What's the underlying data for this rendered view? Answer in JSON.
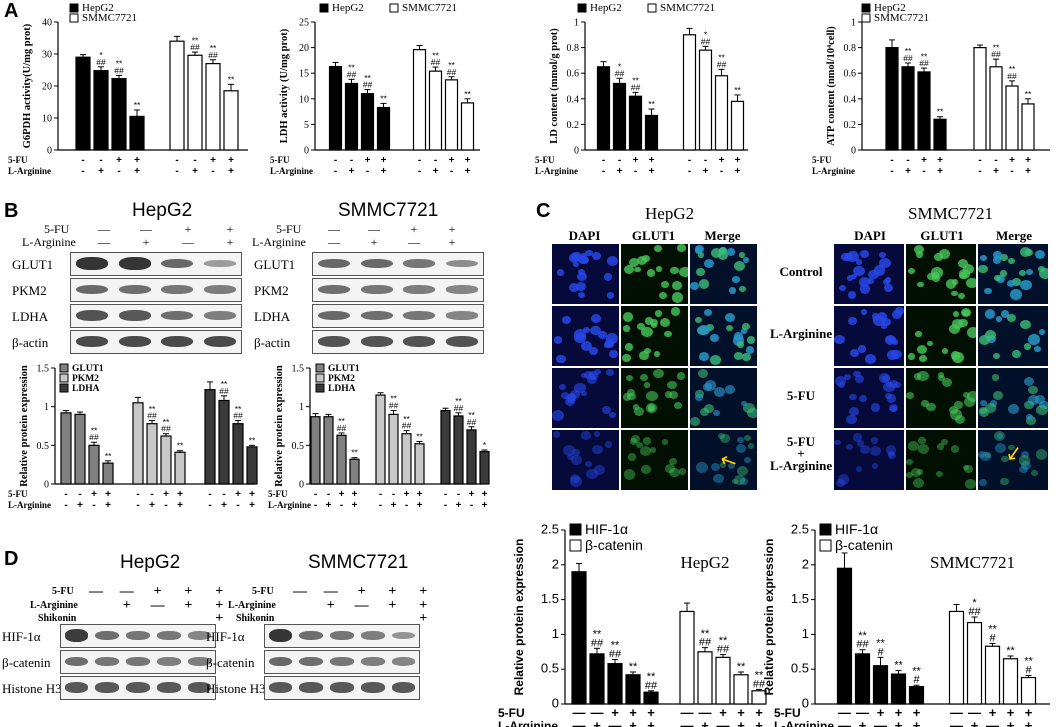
{
  "panels": {
    "A": "A",
    "B": "B",
    "C": "C",
    "D": "D"
  },
  "treatments": {
    "fu": "5-FU",
    "larg": "L-Arginine",
    "shik": "Shikonin"
  },
  "cells": {
    "hepg2": "HepG2",
    "smmc": "SMMC7721"
  },
  "proteins": {
    "glut1": "GLUT1",
    "pkm2": "PKM2",
    "ldha": "LDHA",
    "bactin": "β-actin",
    "hif": "HIF-1α",
    "bcat": "β-catenin",
    "histone": "Histone H3"
  },
  "signs": {
    "minus": "—",
    "plus": "+",
    "dash": "-"
  },
  "colors": {
    "black": "#000000",
    "white": "#ffffff",
    "grey1": "#808080",
    "grey2": "#c8c8c8",
    "grey3": "#3a3a3a"
  },
  "panelC": {
    "dapi": "DAPI",
    "glut1": "GLUT1",
    "merge": "Merge",
    "rows": [
      "Control",
      "L-Arginine",
      "5-FU",
      "5-FU\n+\nL-Arginine"
    ]
  },
  "chart_data": [
    {
      "type": "bar",
      "id": "A1",
      "ylabel": "G6PDH activity(U/mg prot)",
      "ylim": [
        0,
        40
      ],
      "yticks": [
        0,
        10,
        20,
        30,
        40
      ],
      "legend": [
        "HepG2",
        "SMMC7721"
      ],
      "groups": 2,
      "series": [
        {
          "name": "HepG2",
          "values": [
            29,
            24.8,
            22.3,
            10.5
          ],
          "errors": [
            0.8,
            1.2,
            1.0,
            2.0
          ],
          "ann": [
            "",
            "*\n##",
            "**\n##",
            "**"
          ]
        },
        {
          "name": "SMMC7721",
          "values": [
            34,
            29.6,
            27,
            18.5
          ],
          "errors": [
            1.5,
            1.0,
            1.2,
            2.0
          ],
          "ann": [
            "",
            "**\n##",
            "**\n##",
            "**"
          ]
        }
      ],
      "signs_fu": [
        "-",
        "-",
        "+",
        "+"
      ],
      "signs_larg": [
        "-",
        "+",
        "-",
        "+"
      ]
    },
    {
      "type": "bar",
      "id": "A2",
      "ylabel": "LDH activity (U/mg prot)",
      "ylim": [
        0,
        25
      ],
      "yticks": [
        0,
        5,
        10,
        15,
        20,
        25
      ],
      "legend": [
        "HepG2",
        "SMMC7721"
      ],
      "groups": 2,
      "series": [
        {
          "name": "HepG2",
          "values": [
            16.3,
            13,
            11,
            8.3
          ],
          "errors": [
            0.8,
            0.8,
            0.8,
            0.8
          ],
          "ann": [
            "",
            "**\n##",
            "**\n##",
            "**"
          ]
        },
        {
          "name": "SMMC7721",
          "values": [
            19.6,
            15.4,
            13.7,
            9.2
          ],
          "errors": [
            0.8,
            0.8,
            0.6,
            0.8
          ],
          "ann": [
            "",
            "**\n##",
            "**\n##",
            "**"
          ]
        }
      ],
      "signs_fu": [
        "-",
        "-",
        "+",
        "+"
      ],
      "signs_larg": [
        "-",
        "+",
        "-",
        "+"
      ]
    },
    {
      "type": "bar",
      "id": "A3",
      "ylabel": "LD content (mmol/g prot)",
      "ylim": [
        0,
        1.0
      ],
      "yticks": [
        0,
        0.2,
        0.4,
        0.6,
        0.8,
        1.0
      ],
      "legend": [
        "HepG2",
        "SMMC7721"
      ],
      "groups": 2,
      "series": [
        {
          "name": "HepG2",
          "values": [
            0.65,
            0.52,
            0.42,
            0.27
          ],
          "errors": [
            0.04,
            0.04,
            0.03,
            0.05
          ],
          "ann": [
            "",
            "*\n##",
            "**\n##",
            "**"
          ]
        },
        {
          "name": "SMMC7721",
          "values": [
            0.9,
            0.78,
            0.58,
            0.38
          ],
          "errors": [
            0.05,
            0.03,
            0.05,
            0.05
          ],
          "ann": [
            "",
            "*\n##",
            "**\n##",
            "**"
          ]
        }
      ],
      "signs_fu": [
        "-",
        "-",
        "+",
        "+"
      ],
      "signs_larg": [
        "-",
        "+",
        "-",
        "+"
      ]
    },
    {
      "type": "bar",
      "id": "A4",
      "ylabel": "ATP content (nmol/10⁴cell)",
      "ylim": [
        0,
        1.0
      ],
      "yticks": [
        0,
        0.2,
        0.4,
        0.6,
        0.8,
        1.0
      ],
      "legend": [
        "HepG2",
        "SMMC7721"
      ],
      "groups": 2,
      "series": [
        {
          "name": "HepG2",
          "values": [
            0.8,
            0.65,
            0.61,
            0.24
          ],
          "errors": [
            0.06,
            0.03,
            0.03,
            0.02
          ],
          "ann": [
            "",
            "**\n##",
            "**\n##",
            "**"
          ]
        },
        {
          "name": "SMMC7721",
          "values": [
            0.8,
            0.65,
            0.5,
            0.36
          ],
          "errors": [
            0.02,
            0.06,
            0.04,
            0.04
          ],
          "ann": [
            "",
            "**\n##",
            "**\n##",
            "**"
          ]
        }
      ],
      "signs_fu": [
        "-",
        "-",
        "+",
        "+"
      ],
      "signs_larg": [
        "-",
        "+",
        "-",
        "+"
      ]
    },
    {
      "type": "bar",
      "id": "B1",
      "ylabel": "Relative protein expression",
      "ylim": [
        0,
        1.5
      ],
      "yticks": [
        0,
        0.5,
        1.0,
        1.5
      ],
      "legend": [
        "GLUT1",
        "PKM2",
        "LDHA"
      ],
      "groups": 3,
      "series": [
        {
          "name": "GLUT1",
          "values": [
            0.92,
            0.9,
            0.5,
            0.27
          ],
          "errors": [
            0.03,
            0.03,
            0.04,
            0.03
          ],
          "ann": [
            "",
            "",
            "**\n##",
            "**"
          ]
        },
        {
          "name": "PKM2",
          "values": [
            1.05,
            0.78,
            0.62,
            0.41
          ],
          "errors": [
            0.07,
            0.04,
            0.03,
            0.02
          ],
          "ann": [
            "",
            "**\n##",
            "**\n##",
            "**"
          ]
        },
        {
          "name": "LDHA",
          "values": [
            1.22,
            1.08,
            0.78,
            0.48
          ],
          "errors": [
            0.1,
            0.06,
            0.04,
            0.02
          ],
          "ann": [
            "",
            "**\n##",
            "**\n##",
            "**"
          ]
        }
      ],
      "signs_fu": [
        "-",
        "-",
        "+",
        "+"
      ],
      "signs_larg": [
        "-",
        "+",
        "-",
        "+"
      ]
    },
    {
      "type": "bar",
      "id": "B2",
      "ylabel": "Relative protein expression",
      "ylim": [
        0,
        1.5
      ],
      "yticks": [
        0,
        0.5,
        1.0,
        1.5
      ],
      "legend": [
        "GLUT1",
        "PKM2",
        "LDHA"
      ],
      "groups": 3,
      "series": [
        {
          "name": "GLUT1",
          "values": [
            0.87,
            0.87,
            0.63,
            0.32
          ],
          "errors": [
            0.04,
            0.03,
            0.03,
            0.02
          ],
          "ann": [
            "",
            "",
            "**\n##",
            "**"
          ]
        },
        {
          "name": "PKM2",
          "values": [
            1.15,
            0.9,
            0.65,
            0.52
          ],
          "errors": [
            0.03,
            0.05,
            0.04,
            0.03
          ],
          "ann": [
            "",
            "**\n##",
            "**\n##",
            "**"
          ]
        },
        {
          "name": "LDHA",
          "values": [
            0.95,
            0.88,
            0.7,
            0.42
          ],
          "errors": [
            0.03,
            0.04,
            0.04,
            0.02
          ],
          "ann": [
            "",
            "**\n##",
            "**\n##",
            "*"
          ]
        }
      ],
      "signs_fu": [
        "-",
        "-",
        "+",
        "+"
      ],
      "signs_larg": [
        "-",
        "+",
        "-",
        "+"
      ]
    },
    {
      "type": "bar",
      "id": "D1",
      "ylabel": "Relative protein expression",
      "title": "HepG2",
      "ylim": [
        0,
        2.5
      ],
      "yticks": [
        0,
        0.5,
        1.0,
        1.5,
        2.0,
        2.5
      ],
      "legend": [
        "HIF-1α",
        "β-catenin"
      ],
      "groups": 2,
      "series": [
        {
          "name": "HIF-1α",
          "values": [
            1.9,
            0.72,
            0.58,
            0.42,
            0.17
          ],
          "errors": [
            0.12,
            0.08,
            0.06,
            0.04,
            0.02
          ],
          "ann": [
            "",
            "**\n##",
            "**\n##",
            "**",
            "**\n##"
          ]
        },
        {
          "name": "β-catenin",
          "values": [
            1.33,
            0.75,
            0.67,
            0.42,
            0.19
          ],
          "errors": [
            0.12,
            0.06,
            0.04,
            0.04,
            0.02
          ],
          "ann": [
            "",
            "**\n##",
            "**\n##",
            "**",
            "**\n##"
          ]
        }
      ],
      "signs_fu": [
        "—",
        "—",
        "+",
        "+",
        "+"
      ],
      "signs_larg": [
        "—",
        "+",
        "—",
        "+",
        "+"
      ],
      "signs_shik": [
        "—",
        "—",
        "—",
        "—",
        "+"
      ]
    },
    {
      "type": "bar",
      "id": "D2",
      "ylabel": "Relative protein expression",
      "title": "SMMC7721",
      "ylim": [
        0,
        2.5
      ],
      "yticks": [
        0,
        0.5,
        1.0,
        1.5,
        2.0,
        2.5
      ],
      "legend": [
        "HIF-1α",
        "β-catenin"
      ],
      "groups": 2,
      "series": [
        {
          "name": "HIF-1α",
          "values": [
            1.95,
            0.72,
            0.55,
            0.43,
            0.25
          ],
          "errors": [
            0.22,
            0.06,
            0.12,
            0.05,
            0.02
          ],
          "ann": [
            "",
            "**\n##",
            "**\n#",
            "**",
            "**\n#"
          ]
        },
        {
          "name": "β-catenin",
          "values": [
            1.33,
            1.17,
            0.83,
            0.65,
            0.38
          ],
          "errors": [
            0.1,
            0.08,
            0.04,
            0.04,
            0.03
          ],
          "ann": [
            "",
            "*\n##",
            "**\n#",
            "**",
            "**\n#"
          ]
        }
      ],
      "signs_fu": [
        "—",
        "—",
        "+",
        "+",
        "+"
      ],
      "signs_larg": [
        "—",
        "+",
        "—",
        "+",
        "+"
      ],
      "signs_shik": [
        "—",
        "—",
        "—",
        "—",
        "+"
      ]
    }
  ]
}
